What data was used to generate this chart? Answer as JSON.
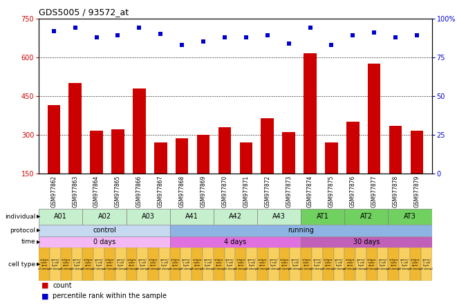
{
  "title": "GDS5005 / 93572_at",
  "samples": [
    "GSM977862",
    "GSM977863",
    "GSM977864",
    "GSM977865",
    "GSM977866",
    "GSM977867",
    "GSM977868",
    "GSM977869",
    "GSM977870",
    "GSM977871",
    "GSM977872",
    "GSM977873",
    "GSM977874",
    "GSM977875",
    "GSM977876",
    "GSM977877",
    "GSM977878",
    "GSM977879"
  ],
  "counts": [
    415,
    500,
    315,
    320,
    480,
    270,
    285,
    300,
    330,
    270,
    365,
    310,
    615,
    270,
    350,
    575,
    335,
    315
  ],
  "percentiles": [
    92,
    94,
    88,
    89,
    94,
    90,
    83,
    85,
    88,
    88,
    89,
    84,
    94,
    83,
    89,
    91,
    88,
    89
  ],
  "ylim_left": [
    150,
    750
  ],
  "ylim_right": [
    0,
    100
  ],
  "yticks_left": [
    150,
    300,
    450,
    600,
    750
  ],
  "yticks_right": [
    0,
    25,
    50,
    75,
    100
  ],
  "bar_color": "#cc0000",
  "dot_color": "#0000cc",
  "gridline_y": [
    300,
    450,
    600
  ],
  "individuals": [
    {
      "label": "A01",
      "start": 0,
      "end": 2,
      "color": "#c6efce"
    },
    {
      "label": "A02",
      "start": 2,
      "end": 4,
      "color": "#c6efce"
    },
    {
      "label": "A03",
      "start": 4,
      "end": 6,
      "color": "#c6efce"
    },
    {
      "label": "A41",
      "start": 6,
      "end": 8,
      "color": "#c6efce"
    },
    {
      "label": "A42",
      "start": 8,
      "end": 10,
      "color": "#c6efce"
    },
    {
      "label": "A43",
      "start": 10,
      "end": 12,
      "color": "#c6efce"
    },
    {
      "label": "AT1",
      "start": 12,
      "end": 14,
      "color": "#70d060"
    },
    {
      "label": "AT2",
      "start": 14,
      "end": 16,
      "color": "#70d060"
    },
    {
      "label": "AT3",
      "start": 16,
      "end": 18,
      "color": "#70d060"
    }
  ],
  "protocols": [
    {
      "label": "control",
      "start": 0,
      "end": 6,
      "color": "#c5d9f1"
    },
    {
      "label": "running",
      "start": 6,
      "end": 18,
      "color": "#8db4e2"
    }
  ],
  "times": [
    {
      "label": "0 days",
      "start": 0,
      "end": 6,
      "color": "#f4b8f4"
    },
    {
      "label": "4 days",
      "start": 6,
      "end": 12,
      "color": "#e070e0"
    },
    {
      "label": "30 days",
      "start": 12,
      "end": 18,
      "color": "#c060b8"
    }
  ],
  "cell_labels": [
    "subgra\nnular\nzone\nof dentpl",
    "granul\ne cell\nlayer\nof dentpl"
  ],
  "cell_type_color1": "#f0b830",
  "cell_type_color2": "#f8d060",
  "row_labels": [
    "individual",
    "protocol",
    "time",
    "cell type"
  ],
  "legend_count_color": "#cc0000",
  "legend_dot_color": "#0000cc",
  "xtick_bg_color": "#d0d0d0"
}
